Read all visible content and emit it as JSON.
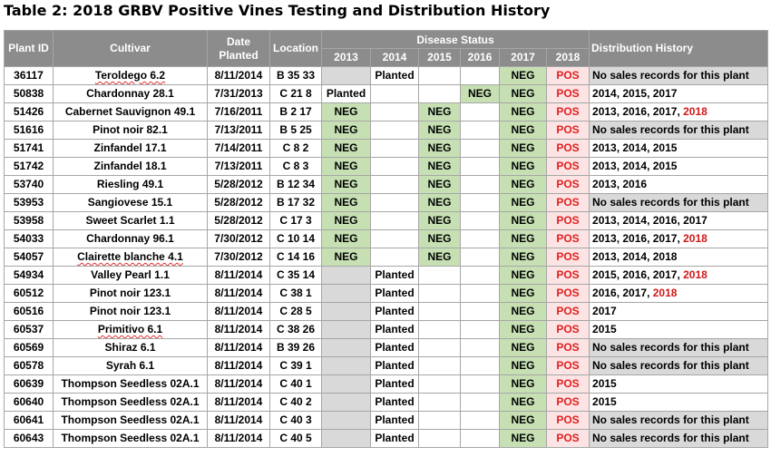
{
  "title": "Table 2: 2018 GRBV Positive Vines Testing and Distribution History",
  "headers": {
    "plant_id": "Plant ID",
    "cultivar": "Cultivar",
    "date_planted": [
      "Date",
      "Planted"
    ],
    "location": "Location",
    "disease_status": "Disease Status",
    "years": [
      "2013",
      "2014",
      "2015",
      "2016",
      "2017",
      "2018"
    ],
    "distribution": "Distribution History"
  },
  "rows": [
    {
      "id": "36117",
      "cultivar": "Teroldego 6.2",
      "wavy": true,
      "date": "8/11/2014",
      "loc": "B 35 33",
      "status": [
        "",
        "Planted",
        "",
        "",
        "NEG",
        "POS"
      ],
      "grey": [
        true,
        false,
        false,
        false,
        false,
        false
      ],
      "dist": [
        {
          "t": "No sales records for this plant"
        }
      ],
      "dist_grey": true
    },
    {
      "id": "50838",
      "cultivar": "Chardonnay 28.1",
      "date": "7/31/2013",
      "loc": "C 21 8",
      "status": [
        "Planted",
        "",
        "",
        "NEG",
        "NEG",
        "POS"
      ],
      "dist": [
        {
          "t": "2014, 2015, 2017"
        }
      ]
    },
    {
      "id": "51426",
      "cultivar": "Cabernet Sauvignon 49.1",
      "date": "7/16/2011",
      "loc": "B 2 17",
      "status": [
        "NEG",
        "",
        "NEG",
        "",
        "NEG",
        "POS"
      ],
      "dist": [
        {
          "t": "2013, 2016, 2017, "
        },
        {
          "t": "2018",
          "red": true
        }
      ]
    },
    {
      "id": "51616",
      "cultivar": "Pinot noir 82.1",
      "date": "7/13/2011",
      "loc": "B 5 25",
      "status": [
        "NEG",
        "",
        "NEG",
        "",
        "NEG",
        "POS"
      ],
      "dist": [
        {
          "t": "No sales records for this plant"
        }
      ],
      "dist_grey": true
    },
    {
      "id": "51741",
      "cultivar": "Zinfandel 17.1",
      "date": "7/14/2011",
      "loc": "C 8 2",
      "status": [
        "NEG",
        "",
        "NEG",
        "",
        "NEG",
        "POS"
      ],
      "dist": [
        {
          "t": "2013, 2014, 2015"
        }
      ]
    },
    {
      "id": "51742",
      "cultivar": "Zinfandel 18.1",
      "date": "7/13/2011",
      "loc": "C 8 3",
      "status": [
        "NEG",
        "",
        "NEG",
        "",
        "NEG",
        "POS"
      ],
      "dist": [
        {
          "t": "2013, 2014, 2015"
        }
      ]
    },
    {
      "id": "53740",
      "cultivar": "Riesling 49.1",
      "date": "5/28/2012",
      "loc": "B 12 34",
      "status": [
        "NEG",
        "",
        "NEG",
        "",
        "NEG",
        "POS"
      ],
      "dist": [
        {
          "t": "2013, 2016"
        }
      ]
    },
    {
      "id": "53953",
      "cultivar": "Sangiovese 15.1",
      "date": "5/28/2012",
      "loc": "B 17 32",
      "status": [
        "NEG",
        "",
        "NEG",
        "",
        "NEG",
        "POS"
      ],
      "dist": [
        {
          "t": "No sales records for this plant"
        }
      ],
      "dist_grey": true
    },
    {
      "id": "53958",
      "cultivar": "Sweet Scarlet 1.1",
      "date": "5/28/2012",
      "loc": "C 17 3",
      "status": [
        "NEG",
        "",
        "NEG",
        "",
        "NEG",
        "POS"
      ],
      "dist": [
        {
          "t": "2013, 2014, 2016, 2017"
        }
      ]
    },
    {
      "id": "54033",
      "cultivar": "Chardonnay 96.1",
      "date": "7/30/2012",
      "loc": "C 10 14",
      "status": [
        "NEG",
        "",
        "NEG",
        "",
        "NEG",
        "POS"
      ],
      "dist": [
        {
          "t": "2013, 2016, 2017, "
        },
        {
          "t": "2018",
          "red": true
        }
      ]
    },
    {
      "id": "54057",
      "cultivar": "Clairette blanche 4.1",
      "wavy": true,
      "date": "7/30/2012",
      "loc": "C 14 16",
      "status": [
        "NEG",
        "",
        "NEG",
        "",
        "NEG",
        "POS"
      ],
      "dist": [
        {
          "t": "2013, 2014, 2018"
        }
      ]
    },
    {
      "id": "54934",
      "cultivar": "Valley Pearl 1.1",
      "date": "8/11/2014",
      "loc": "C 35 14",
      "status": [
        "",
        "Planted",
        "",
        "",
        "NEG",
        "POS"
      ],
      "grey": [
        true,
        false,
        false,
        false,
        false,
        false
      ],
      "dist": [
        {
          "t": "2015, 2016, 2017, "
        },
        {
          "t": "2018",
          "red": true
        }
      ]
    },
    {
      "id": "60512",
      "cultivar": "Pinot noir 123.1",
      "date": "8/11/2014",
      "loc": "C 38 1",
      "status": [
        "",
        "Planted",
        "",
        "",
        "NEG",
        "POS"
      ],
      "grey": [
        true,
        false,
        false,
        false,
        false,
        false
      ],
      "dist": [
        {
          "t": "2016, 2017, "
        },
        {
          "t": "2018",
          "red": true
        }
      ]
    },
    {
      "id": "60516",
      "cultivar": "Pinot noir 123.1",
      "date": "8/11/2014",
      "loc": "C 28 5",
      "status": [
        "",
        "Planted",
        "",
        "",
        "NEG",
        "POS"
      ],
      "grey": [
        true,
        false,
        false,
        false,
        false,
        false
      ],
      "dist": [
        {
          "t": "2017"
        }
      ]
    },
    {
      "id": "60537",
      "cultivar": "Primitivo 6.1",
      "wavy": true,
      "date": "8/11/2014",
      "loc": "C 38 26",
      "status": [
        "",
        "Planted",
        "",
        "",
        "NEG",
        "POS"
      ],
      "grey": [
        true,
        false,
        false,
        false,
        false,
        false
      ],
      "dist": [
        {
          "t": "2015"
        }
      ]
    },
    {
      "id": "60569",
      "cultivar": "Shiraz 6.1",
      "date": "8/11/2014",
      "loc": "B 39 26",
      "status": [
        "",
        "Planted",
        "",
        "",
        "NEG",
        "POS"
      ],
      "grey": [
        true,
        false,
        false,
        false,
        false,
        false
      ],
      "dist": [
        {
          "t": "No sales records for this plant"
        }
      ],
      "dist_grey": true
    },
    {
      "id": "60578",
      "cultivar": "Syrah 6.1",
      "date": "8/11/2014",
      "loc": "C 39 1",
      "status": [
        "",
        "Planted",
        "",
        "",
        "NEG",
        "POS"
      ],
      "grey": [
        true,
        false,
        false,
        false,
        false,
        false
      ],
      "dist": [
        {
          "t": "No sales records for this plant"
        }
      ],
      "dist_grey": true
    },
    {
      "id": "60639",
      "cultivar": "Thompson Seedless 02A.1",
      "date": "8/11/2014",
      "loc": "C 40 1",
      "status": [
        "",
        "Planted",
        "",
        "",
        "NEG",
        "POS"
      ],
      "grey": [
        true,
        false,
        false,
        false,
        false,
        false
      ],
      "dist": [
        {
          "t": "2015"
        }
      ]
    },
    {
      "id": "60640",
      "cultivar": "Thompson Seedless 02A.1",
      "date": "8/11/2014",
      "loc": "C 40 2",
      "status": [
        "",
        "Planted",
        "",
        "",
        "NEG",
        "POS"
      ],
      "grey": [
        true,
        false,
        false,
        false,
        false,
        false
      ],
      "dist": [
        {
          "t": "2015"
        }
      ]
    },
    {
      "id": "60641",
      "cultivar": "Thompson Seedless 02A.1",
      "date": "8/11/2014",
      "loc": "C 40 3",
      "status": [
        "",
        "Planted",
        "",
        "",
        "NEG",
        "POS"
      ],
      "grey": [
        true,
        false,
        false,
        false,
        false,
        false
      ],
      "dist": [
        {
          "t": "No sales records for this plant"
        }
      ],
      "dist_grey": true
    },
    {
      "id": "60643",
      "cultivar": "Thompson Seedless 02A.1",
      "date": "8/11/2014",
      "loc": "C 40 5",
      "status": [
        "",
        "Planted",
        "",
        "",
        "NEG",
        "POS"
      ],
      "grey": [
        true,
        false,
        false,
        false,
        false,
        false
      ],
      "dist": [
        {
          "t": "No sales records for this plant"
        }
      ],
      "dist_grey": true
    }
  ]
}
